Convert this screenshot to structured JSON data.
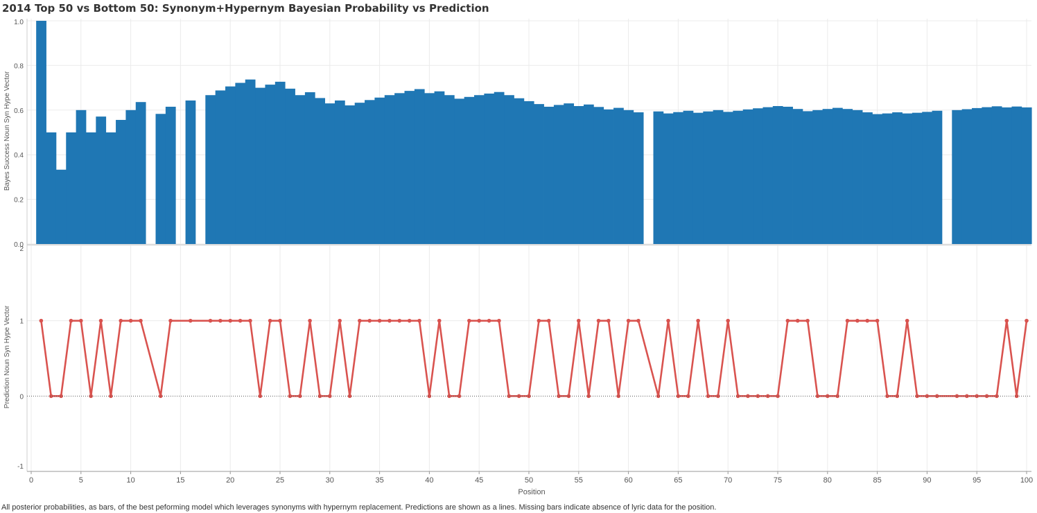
{
  "title": "2014 Top 50 vs Bottom 50: Synonym+Hypernym Bayesian Probability vs Prediction",
  "caption": "All posterior probabilities, as bars, of the best peforming model which leverages synonyms with hypernym replacement. Predictions are shown as a lines. Missing bars indicate absence of lyric data for the position.",
  "colors": {
    "bar": "#1f77b4",
    "line": "#d9534f",
    "grid": "#ebebeb",
    "axis": "#cccccc"
  },
  "chart_data": [
    {
      "type": "bar",
      "ylabel": "Bayes Success Noun Syn Hype Vector",
      "xlabel": "Position",
      "xlim": [
        0,
        101
      ],
      "ylim": [
        0,
        1.0
      ],
      "yticks": [
        0.0,
        0.2,
        0.4,
        0.6,
        0.8,
        1.0
      ],
      "yticklabels": [
        "0.0",
        "0.2",
        "0.4",
        "0.6",
        "0.8",
        "1.0"
      ],
      "grid": true,
      "x": [
        1,
        2,
        3,
        4,
        5,
        6,
        7,
        8,
        9,
        10,
        11,
        13,
        14,
        16,
        18,
        19,
        20,
        21,
        22,
        23,
        24,
        25,
        26,
        27,
        28,
        29,
        30,
        31,
        32,
        33,
        34,
        35,
        36,
        37,
        38,
        39,
        40,
        41,
        42,
        43,
        44,
        45,
        46,
        47,
        48,
        49,
        50,
        51,
        52,
        53,
        54,
        55,
        56,
        57,
        58,
        59,
        60,
        61,
        63,
        64,
        65,
        66,
        67,
        68,
        69,
        70,
        71,
        72,
        73,
        74,
        75,
        76,
        77,
        78,
        79,
        80,
        81,
        82,
        83,
        84,
        85,
        86,
        87,
        88,
        89,
        90,
        91,
        93,
        94,
        95,
        96,
        97,
        98,
        99,
        100
      ],
      "values": [
        1.0,
        0.5,
        0.333,
        0.5,
        0.6,
        0.5,
        0.571,
        0.5,
        0.556,
        0.6,
        0.636,
        0.583,
        0.615,
        0.643,
        0.667,
        0.688,
        0.706,
        0.722,
        0.737,
        0.7,
        0.714,
        0.727,
        0.696,
        0.667,
        0.68,
        0.654,
        0.63,
        0.643,
        0.621,
        0.633,
        0.645,
        0.656,
        0.667,
        0.676,
        0.686,
        0.694,
        0.676,
        0.684,
        0.667,
        0.651,
        0.659,
        0.667,
        0.674,
        0.681,
        0.667,
        0.653,
        0.64,
        0.627,
        0.615,
        0.623,
        0.63,
        0.618,
        0.625,
        0.614,
        0.603,
        0.61,
        0.6,
        0.59,
        0.594,
        0.585,
        0.591,
        0.597,
        0.588,
        0.594,
        0.6,
        0.592,
        0.597,
        0.603,
        0.608,
        0.613,
        0.618,
        0.615,
        0.605,
        0.595,
        0.6,
        0.605,
        0.61,
        0.605,
        0.6,
        0.59,
        0.582,
        0.585,
        0.59,
        0.585,
        0.588,
        0.592,
        0.597,
        0.6,
        0.604,
        0.609,
        0.613,
        0.617,
        0.612,
        0.616,
        0.612
      ]
    },
    {
      "type": "line",
      "ylabel": "Prediction Noun Syn Hype Vector",
      "xlabel": "Position",
      "xlim": [
        0,
        101
      ],
      "ylim": [
        -1,
        2
      ],
      "yticks": [
        -1,
        0,
        1,
        2
      ],
      "yticklabels": [
        "-1",
        "0",
        "1",
        "2"
      ],
      "xticks": [
        0,
        5,
        10,
        15,
        20,
        25,
        30,
        35,
        40,
        45,
        50,
        55,
        60,
        65,
        70,
        75,
        80,
        85,
        90,
        95,
        100
      ],
      "xticklabels": [
        "0",
        "5",
        "10",
        "15",
        "20",
        "25",
        "30",
        "35",
        "40",
        "45",
        "50",
        "55",
        "60",
        "65",
        "70",
        "75",
        "80",
        "85",
        "90",
        "95",
        "100"
      ],
      "grid": true,
      "zero_line": "dotted",
      "x": [
        1,
        2,
        3,
        4,
        5,
        6,
        7,
        8,
        9,
        10,
        11,
        13,
        14,
        16,
        18,
        19,
        20,
        21,
        22,
        23,
        24,
        25,
        26,
        27,
        28,
        29,
        30,
        31,
        32,
        33,
        34,
        35,
        36,
        37,
        38,
        39,
        40,
        41,
        42,
        43,
        44,
        45,
        46,
        47,
        48,
        49,
        50,
        51,
        52,
        53,
        54,
        55,
        56,
        57,
        58,
        59,
        60,
        61,
        63,
        64,
        65,
        66,
        67,
        68,
        69,
        70,
        71,
        72,
        73,
        74,
        75,
        76,
        77,
        78,
        79,
        80,
        81,
        82,
        83,
        84,
        85,
        86,
        87,
        88,
        89,
        90,
        91,
        93,
        94,
        95,
        96,
        97,
        98,
        99,
        100
      ],
      "values": [
        1,
        0,
        0,
        1,
        1,
        0,
        1,
        0,
        1,
        1,
        1,
        0,
        1,
        1,
        1,
        1,
        1,
        1,
        1,
        0,
        1,
        1,
        0,
        0,
        1,
        0,
        0,
        1,
        0,
        1,
        1,
        1,
        1,
        1,
        1,
        1,
        0,
        1,
        0,
        0,
        1,
        1,
        1,
        1,
        0,
        0,
        0,
        1,
        1,
        0,
        0,
        1,
        0,
        1,
        1,
        0,
        1,
        1,
        0,
        1,
        0,
        0,
        1,
        0,
        0,
        1,
        0,
        0,
        0,
        0,
        0,
        1,
        1,
        1,
        0,
        0,
        0,
        1,
        1,
        1,
        1,
        0,
        0,
        1,
        0,
        0,
        0,
        0,
        0,
        0,
        0,
        0,
        1,
        0,
        1
      ]
    }
  ]
}
